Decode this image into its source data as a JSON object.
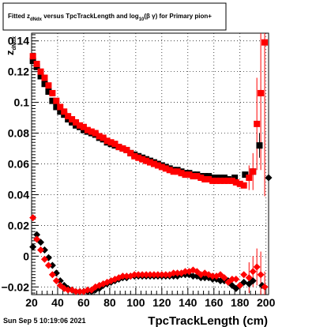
{
  "chart_data": {
    "type": "scatter",
    "title": {
      "part1": "Fitted  z",
      "part1_sub": "dNdx",
      "part2": "  versus TpcTrackLength and log",
      "part2_sub": "10",
      "part3": "(β  γ) for Primary pion+"
    },
    "xlabel": "TpcTrackLength (cm)",
    "ylabel": {
      "main": "z",
      "sub": "dNdx"
    },
    "footer": "Sun Sep  5 10:19:06 2021",
    "xlim": [
      20,
      202
    ],
    "ylim": [
      -0.025,
      0.145
    ],
    "x_ticks": [
      20,
      40,
      60,
      80,
      100,
      120,
      140,
      160,
      180,
      200
    ],
    "y_ticks": [
      -0.02,
      0,
      0.02,
      0.04,
      0.06,
      0.08,
      0.1,
      0.12,
      0.14
    ],
    "x_tick_labels": [
      "20",
      "40",
      "60",
      "80",
      "100",
      "120",
      "140",
      "160",
      "180",
      "200"
    ],
    "y_tick_labels": [
      "−0.02",
      "0",
      "0.02",
      "0.04",
      "0.06",
      "0.08",
      "0.1",
      "0.12",
      "0.14"
    ],
    "grid": true,
    "colors": {
      "black": "#000000",
      "red": "#ff0000"
    },
    "series": [
      {
        "marker": "square",
        "color": "#000000",
        "points": [
          [
            21,
            0.127
          ],
          [
            24,
            0.123
          ],
          [
            27,
            0.117
          ],
          [
            30,
            0.112
          ],
          [
            33,
            0.107
          ],
          [
            36,
            0.101
          ],
          [
            39,
            0.097
          ],
          [
            42,
            0.094
          ],
          [
            45,
            0.092
          ],
          [
            48,
            0.089
          ],
          [
            51,
            0.087
          ],
          [
            54,
            0.085
          ],
          [
            57,
            0.084
          ],
          [
            60,
            0.082
          ],
          [
            63,
            0.081
          ],
          [
            66,
            0.08
          ],
          [
            69,
            0.079
          ],
          [
            72,
            0.077
          ],
          [
            75,
            0.076
          ],
          [
            78,
            0.074
          ],
          [
            81,
            0.073
          ],
          [
            84,
            0.072
          ],
          [
            87,
            0.071
          ],
          [
            90,
            0.07
          ],
          [
            93,
            0.069
          ],
          [
            96,
            0.067
          ],
          [
            99,
            0.066
          ],
          [
            102,
            0.065
          ],
          [
            105,
            0.064
          ],
          [
            108,
            0.063
          ],
          [
            111,
            0.062
          ],
          [
            114,
            0.061
          ],
          [
            117,
            0.06
          ],
          [
            120,
            0.059
          ],
          [
            123,
            0.058
          ],
          [
            126,
            0.057
          ],
          [
            129,
            0.056
          ],
          [
            132,
            0.056
          ],
          [
            135,
            0.055
          ],
          [
            138,
            0.054
          ],
          [
            141,
            0.054
          ],
          [
            144,
            0.053
          ],
          [
            147,
            0.053
          ],
          [
            150,
            0.052
          ],
          [
            153,
            0.052
          ],
          [
            156,
            0.052
          ],
          [
            159,
            0.051
          ],
          [
            162,
            0.051
          ],
          [
            165,
            0.051
          ],
          [
            168,
            0.051
          ],
          [
            171,
            0.05
          ],
          [
            176,
            0.051
          ],
          [
            184,
            0.053
          ],
          [
            190,
            0.055
          ],
          [
            195,
            0.072
          ]
        ],
        "errors": [
          [
            195,
            0.008
          ]
        ]
      },
      {
        "marker": "square",
        "color": "#ff0000",
        "points": [
          [
            21,
            0.13
          ],
          [
            24,
            0.125
          ],
          [
            27,
            0.12
          ],
          [
            30,
            0.116
          ],
          [
            33,
            0.111
          ],
          [
            36,
            0.106
          ],
          [
            39,
            0.101
          ],
          [
            42,
            0.097
          ],
          [
            45,
            0.094
          ],
          [
            48,
            0.091
          ],
          [
            51,
            0.089
          ],
          [
            54,
            0.087
          ],
          [
            57,
            0.085
          ],
          [
            60,
            0.084
          ],
          [
            63,
            0.082
          ],
          [
            66,
            0.081
          ],
          [
            69,
            0.08
          ],
          [
            72,
            0.078
          ],
          [
            75,
            0.077
          ],
          [
            78,
            0.075
          ],
          [
            81,
            0.074
          ],
          [
            84,
            0.073
          ],
          [
            87,
            0.071
          ],
          [
            90,
            0.07
          ],
          [
            93,
            0.069
          ],
          [
            96,
            0.067
          ],
          [
            99,
            0.065
          ],
          [
            102,
            0.064
          ],
          [
            105,
            0.063
          ],
          [
            108,
            0.062
          ],
          [
            111,
            0.061
          ],
          [
            114,
            0.06
          ],
          [
            117,
            0.059
          ],
          [
            120,
            0.058
          ],
          [
            123,
            0.057
          ],
          [
            126,
            0.056
          ],
          [
            129,
            0.055
          ],
          [
            132,
            0.055
          ],
          [
            135,
            0.054
          ],
          [
            138,
            0.053
          ],
          [
            141,
            0.053
          ],
          [
            144,
            0.052
          ],
          [
            147,
            0.052
          ],
          [
            150,
            0.051
          ],
          [
            153,
            0.05
          ],
          [
            156,
            0.05
          ],
          [
            159,
            0.049
          ],
          [
            162,
            0.049
          ],
          [
            165,
            0.049
          ],
          [
            168,
            0.049
          ],
          [
            171,
            0.049
          ],
          [
            174,
            0.049
          ],
          [
            177,
            0.048
          ],
          [
            180,
            0.047
          ],
          [
            183,
            0.046
          ],
          [
            187,
            0.051
          ],
          [
            190,
            0.055
          ],
          [
            193,
            0.086
          ],
          [
            196,
            0.106
          ],
          [
            199,
            0.139
          ]
        ],
        "errors": [
          [
            187,
            0.008
          ],
          [
            190,
            0.012
          ],
          [
            193,
            0.03
          ],
          [
            196,
            0.05
          ],
          [
            199,
            0.1
          ]
        ]
      },
      {
        "marker": "diamond",
        "color": "#000000",
        "points": [
          [
            21,
            0.006
          ],
          [
            24,
            0.014
          ],
          [
            27,
            0.009
          ],
          [
            30,
            0.004
          ],
          [
            33,
            -0.001
          ],
          [
            36,
            -0.006
          ],
          [
            39,
            -0.011
          ],
          [
            42,
            -0.016
          ],
          [
            45,
            -0.019
          ],
          [
            48,
            -0.021
          ],
          [
            51,
            -0.022
          ],
          [
            54,
            -0.023
          ],
          [
            57,
            -0.023
          ],
          [
            60,
            -0.023
          ],
          [
            63,
            -0.023
          ],
          [
            66,
            -0.023
          ],
          [
            69,
            -0.022
          ],
          [
            72,
            -0.021
          ],
          [
            75,
            -0.019
          ],
          [
            78,
            -0.018
          ],
          [
            81,
            -0.017
          ],
          [
            84,
            -0.016
          ],
          [
            87,
            -0.015
          ],
          [
            90,
            -0.014
          ],
          [
            93,
            -0.014
          ],
          [
            96,
            -0.013
          ],
          [
            99,
            -0.013
          ],
          [
            102,
            -0.013
          ],
          [
            105,
            -0.013
          ],
          [
            108,
            -0.013
          ],
          [
            111,
            -0.013
          ],
          [
            114,
            -0.013
          ],
          [
            117,
            -0.013
          ],
          [
            120,
            -0.013
          ],
          [
            123,
            -0.013
          ],
          [
            126,
            -0.013
          ],
          [
            129,
            -0.013
          ],
          [
            132,
            -0.013
          ],
          [
            135,
            -0.012
          ],
          [
            138,
            -0.012
          ],
          [
            141,
            -0.012
          ],
          [
            144,
            -0.013
          ],
          [
            147,
            -0.013
          ],
          [
            150,
            -0.014
          ],
          [
            153,
            -0.014
          ],
          [
            156,
            -0.014
          ],
          [
            159,
            -0.015
          ],
          [
            162,
            -0.015
          ],
          [
            165,
            -0.016
          ],
          [
            168,
            -0.016
          ],
          [
            171,
            -0.016
          ],
          [
            174,
            -0.019
          ],
          [
            177,
            -0.021
          ],
          [
            180,
            -0.019
          ],
          [
            183,
            -0.017
          ],
          [
            187,
            -0.018
          ],
          [
            190,
            -0.016
          ],
          [
            197,
            -0.019
          ],
          [
            202,
            0.051
          ]
        ],
        "errors": []
      },
      {
        "marker": "diamond",
        "color": "#ff0000",
        "points": [
          [
            21,
            0.025
          ],
          [
            24,
            0.011
          ],
          [
            27,
            0.004
          ],
          [
            30,
            -0.002
          ],
          [
            33,
            -0.006
          ],
          [
            36,
            -0.012
          ],
          [
            39,
            -0.016
          ],
          [
            42,
            -0.019
          ],
          [
            45,
            -0.021
          ],
          [
            48,
            -0.022
          ],
          [
            51,
            -0.022
          ],
          [
            54,
            -0.023
          ],
          [
            57,
            -0.023
          ],
          [
            60,
            -0.023
          ],
          [
            63,
            -0.022
          ],
          [
            66,
            -0.022
          ],
          [
            69,
            -0.02
          ],
          [
            72,
            -0.019
          ],
          [
            75,
            -0.018
          ],
          [
            78,
            -0.017
          ],
          [
            81,
            -0.016
          ],
          [
            84,
            -0.015
          ],
          [
            87,
            -0.014
          ],
          [
            90,
            -0.013
          ],
          [
            93,
            -0.013
          ],
          [
            96,
            -0.013
          ],
          [
            99,
            -0.012
          ],
          [
            102,
            -0.012
          ],
          [
            105,
            -0.012
          ],
          [
            108,
            -0.012
          ],
          [
            111,
            -0.012
          ],
          [
            114,
            -0.012
          ],
          [
            117,
            -0.012
          ],
          [
            120,
            -0.012
          ],
          [
            123,
            -0.012
          ],
          [
            126,
            -0.012
          ],
          [
            129,
            -0.011
          ],
          [
            132,
            -0.011
          ],
          [
            135,
            -0.011
          ],
          [
            138,
            -0.01
          ],
          [
            141,
            -0.01
          ],
          [
            144,
            -0.009
          ],
          [
            147,
            -0.01
          ],
          [
            150,
            -0.012
          ],
          [
            153,
            -0.011
          ],
          [
            156,
            -0.012
          ],
          [
            159,
            -0.013
          ],
          [
            162,
            -0.013
          ],
          [
            165,
            -0.012
          ],
          [
            168,
            -0.014
          ],
          [
            171,
            -0.017
          ],
          [
            174,
            -0.015
          ],
          [
            177,
            -0.015
          ],
          [
            180,
            -0.019
          ],
          [
            183,
            -0.012
          ],
          [
            187,
            -0.014
          ],
          [
            190,
            -0.01
          ],
          [
            193,
            -0.007
          ],
          [
            196,
            -0.012
          ],
          [
            199,
            -0.02
          ]
        ],
        "errors": [
          [
            187,
            0.01
          ],
          [
            190,
            0.01
          ],
          [
            193,
            0.012
          ],
          [
            196,
            0.015
          ],
          [
            199,
            0.01
          ]
        ]
      }
    ]
  }
}
